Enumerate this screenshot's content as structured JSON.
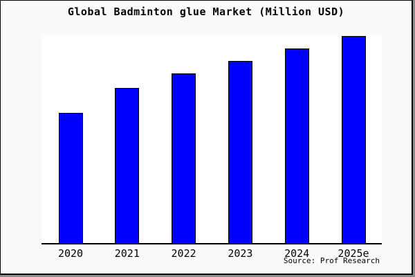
{
  "title": "Global Badminton glue Market (Million USD)",
  "source_note": "Source: Prof Research",
  "colors": {
    "bar_fill": "#0000ff",
    "bar_border": "#000000",
    "plot_background": "#ffffff",
    "canvas_background": "#fafafa",
    "frame_border": "#000000",
    "text": "#000000"
  },
  "chart_data": {
    "type": "bar",
    "title": "Global Badminton glue Market (Million USD)",
    "categories": [
      "2020",
      "2021",
      "2022",
      "2023",
      "2024",
      "2025e"
    ],
    "values": [
      63,
      75,
      82,
      88,
      94,
      100
    ],
    "xlabel": "",
    "ylabel": "",
    "ylim": [
      0,
      101
    ],
    "grid": false,
    "legend": false,
    "y_axis_shown": false,
    "annotations": [
      "Source: Prof Research"
    ]
  }
}
